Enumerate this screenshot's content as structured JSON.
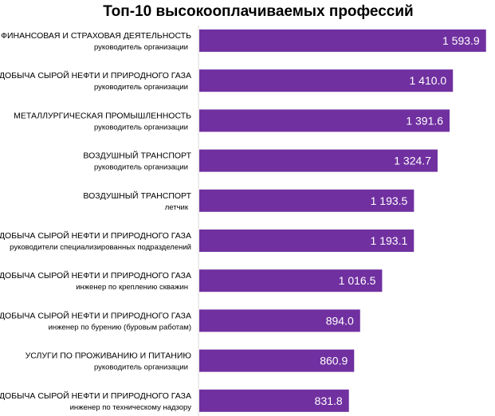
{
  "chart_data": {
    "type": "bar",
    "orientation": "horizontal",
    "title": "Топ-10 высокооплачиваемых профессий",
    "categories": [
      {
        "line1": "ФИНАНСОВАЯ И СТРАХОВАЯ ДЕЯТЕЛЬНОСТЬ",
        "line2": "руководитель организации"
      },
      {
        "line1": "ДОБЫЧА СЫРОЙ НЕФТИ И ПРИРОДНОГО ГАЗА",
        "line2": "руководитель организации"
      },
      {
        "line1": "МЕТАЛЛУРГИЧЕСКАЯ ПРОМЫШЛЕННОСТЬ",
        "line2": "руководитель организации"
      },
      {
        "line1": "ВОЗДУШНЫЙ ТРАНСПОРТ",
        "line2": "руководитель организации"
      },
      {
        "line1": "ВОЗДУШНЫЙ ТРАНСПОРТ",
        "line2": "летчик"
      },
      {
        "line1": "ДОБЫЧА СЫРОЙ НЕФТИ И ПРИРОДНОГО ГАЗА",
        "line2": "руководители специализированных подразделений"
      },
      {
        "line1": "ДОБЫЧА СЫРОЙ НЕФТИ И ПРИРОДНОГО ГАЗА",
        "line2": "инженер по креплению скважин"
      },
      {
        "line1": "ДОБЫЧА СЫРОЙ НЕФТИ И ПРИРОДНОГО ГАЗА",
        "line2": "инженер по бурению (буровым работам)"
      },
      {
        "line1": "УСЛУГИ ПО ПРОЖИВАНИЮ И ПИТАНИЮ",
        "line2": "руководитель организации"
      },
      {
        "line1": "ДОБЫЧА СЫРОЙ НЕФТИ И ПРИРОДНОГО ГАЗА",
        "line2": "инженер по техническому надзору"
      }
    ],
    "values": [
      1593.9,
      1410.0,
      1391.6,
      1324.7,
      1193.5,
      1193.1,
      1016.5,
      894.0,
      860.9,
      831.8
    ],
    "value_labels": [
      "1 593.9",
      "1 410.0",
      "1 391.6",
      "1 324.7",
      "1 193.5",
      "1 193.1",
      "1 016.5",
      "894.0",
      "860.9",
      "831.8"
    ],
    "xlim": [
      0,
      1635
    ],
    "bar_color": "#7030a0",
    "label_color": "#ffffff",
    "grid": false,
    "legend": "none"
  }
}
